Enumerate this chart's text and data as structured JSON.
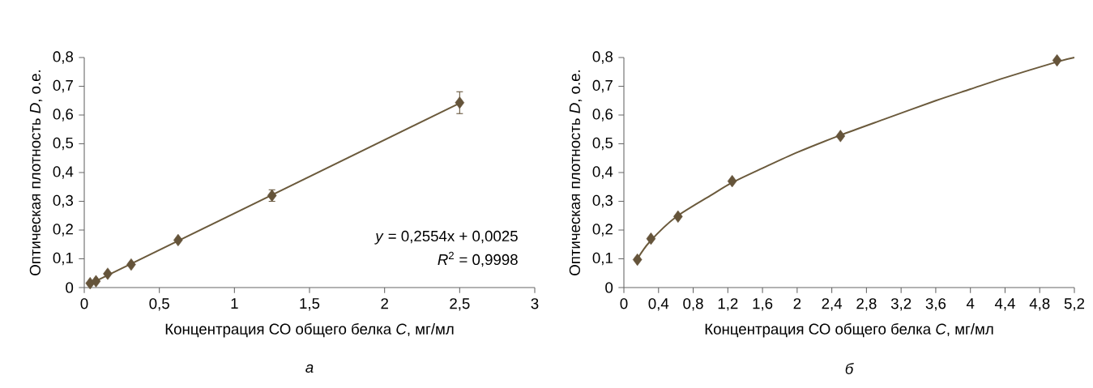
{
  "chart_data": [
    {
      "type": "scatter",
      "xlabel": "Концентрация СО общего белка *C*, мг/мл",
      "ylabel": "Оптическая плотность *D*, о.е.",
      "xlim": [
        0,
        3
      ],
      "ylim": [
        0,
        0.8
      ],
      "xticks": [
        0,
        {
          "value": 0.5,
          "label": "0,5"
        },
        1,
        {
          "value": 1.5,
          "label": "1,5"
        },
        2,
        {
          "value": 2.5,
          "label": "2,5"
        },
        3
      ],
      "yticks": [
        0,
        {
          "value": 0.1,
          "label": "0,1"
        },
        {
          "value": 0.2,
          "label": "0,2"
        },
        {
          "value": 0.3,
          "label": "0,3"
        },
        {
          "value": 0.4,
          "label": "0,4"
        },
        {
          "value": 0.5,
          "label": "0,5"
        },
        {
          "value": 0.6,
          "label": "0,6"
        },
        {
          "value": 0.7,
          "label": "0,7"
        },
        {
          "value": 0.8,
          "label": "0,8"
        }
      ],
      "series": [
        {
          "marker": "diamond",
          "color": "#65543a",
          "x": [
            0.039,
            0.078,
            0.156,
            0.3125,
            0.625,
            1.25,
            2.5
          ],
          "values": [
            0.015,
            0.022,
            0.048,
            0.08,
            0.165,
            0.32,
            0.643
          ],
          "errors": [
            null,
            null,
            null,
            null,
            null,
            0.02,
            0.038
          ]
        },
        {
          "type": "line",
          "marker": "none",
          "color": "#6b5a3c",
          "x": [
            0.02,
            2.5
          ],
          "values": [
            0.008,
            0.641
          ]
        }
      ],
      "annotations": [
        "*y* = 0,2554x + 0,0025",
        "*R*$^{2}$ = 0,9998",
        "а"
      ]
    },
    {
      "type": "scatter",
      "xlabel": "Концентрация СО общего белка *C*, мг/мл",
      "ylabel": "Оптическая плотность *D*, о.е.",
      "xlim": [
        0,
        5.2
      ],
      "ylim": [
        0,
        0.8
      ],
      "xticks": [
        0,
        {
          "value": 0.4,
          "label": "0,4"
        },
        {
          "value": 0.8,
          "label": "0,8"
        },
        {
          "value": 1.2,
          "label": "1,2"
        },
        {
          "value": 1.6,
          "label": "1,6"
        },
        2,
        {
          "value": 2.4,
          "label": "2,4"
        },
        {
          "value": 2.8,
          "label": "2,8"
        },
        {
          "value": 3.2,
          "label": "3,2"
        },
        {
          "value": 3.6,
          "label": "3,6"
        },
        4,
        {
          "value": 4.4,
          "label": "4,4"
        },
        {
          "value": 4.8,
          "label": "4,8"
        },
        {
          "value": 5.2,
          "label": "5,2"
        }
      ],
      "yticks": [
        0,
        {
          "value": 0.1,
          "label": "0,1"
        },
        {
          "value": 0.2,
          "label": "0,2"
        },
        {
          "value": 0.3,
          "label": "0,3"
        },
        {
          "value": 0.4,
          "label": "0,4"
        },
        {
          "value": 0.5,
          "label": "0,5"
        },
        {
          "value": 0.6,
          "label": "0,6"
        },
        {
          "value": 0.7,
          "label": "0,7"
        },
        {
          "value": 0.8,
          "label": "0,8"
        }
      ],
      "series": [
        {
          "marker": "diamond",
          "color": "#65543a",
          "x": [
            0.156,
            0.3125,
            0.625,
            1.25,
            2.5,
            5.0
          ],
          "values": [
            0.097,
            0.17,
            0.247,
            0.37,
            0.527,
            0.79
          ]
        },
        {
          "type": "line",
          "marker": "none",
          "color": "#6b5a3c",
          "x": [
            0.156,
            0.3,
            0.6,
            1.0,
            1.25,
            1.6,
            2.0,
            2.5,
            3.0,
            3.6,
            4.0,
            4.4,
            5.0,
            5.2
          ],
          "values": [
            0.1,
            0.16,
            0.245,
            0.32,
            0.365,
            0.415,
            0.47,
            0.53,
            0.585,
            0.65,
            0.69,
            0.73,
            0.785,
            0.8
          ]
        }
      ],
      "annotations": [
        "б"
      ]
    }
  ]
}
